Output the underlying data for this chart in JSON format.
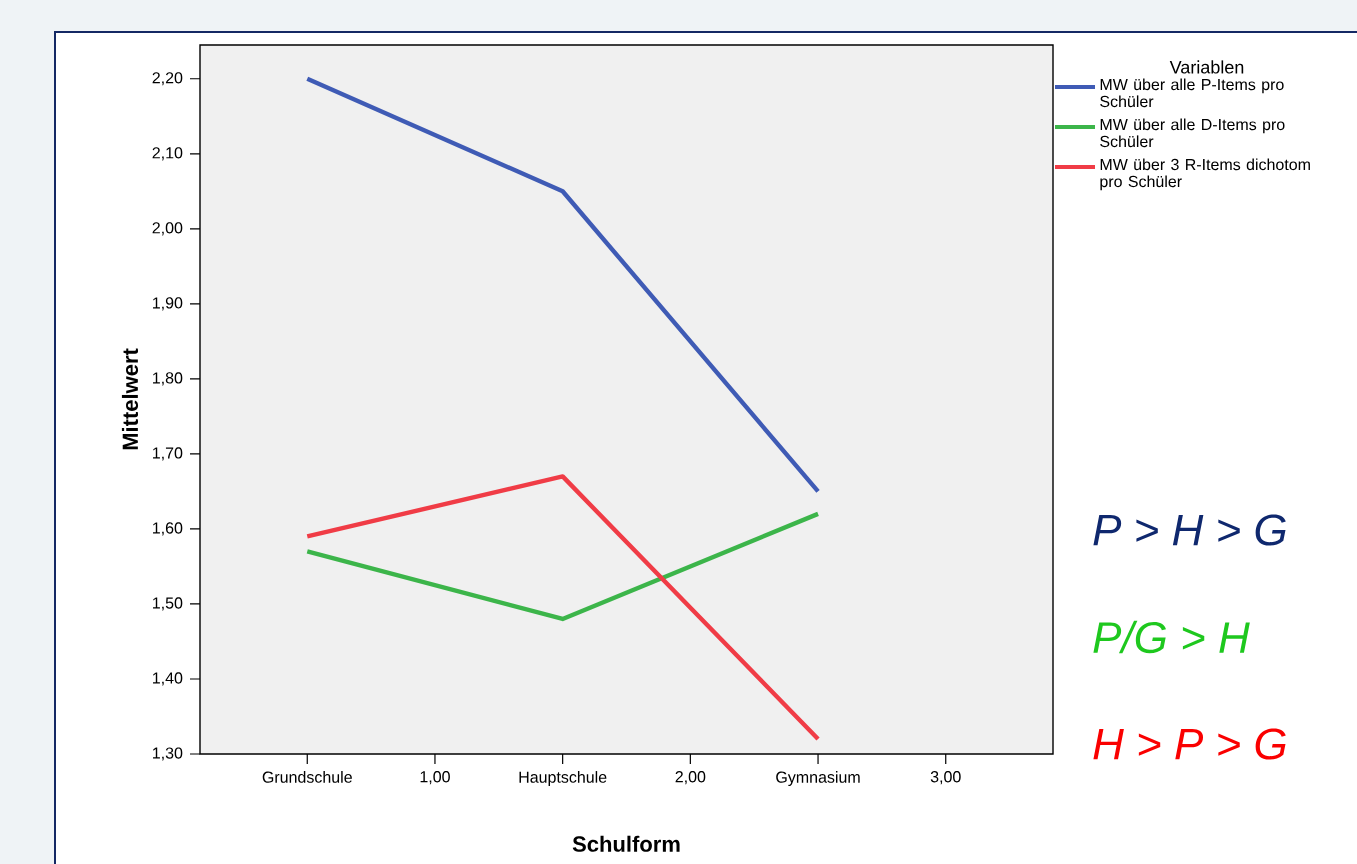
{
  "chart_data": {
    "type": "line",
    "xlabel": "Schulform",
    "ylabel": "Mittelwert",
    "legend_title": "Variablen",
    "legend": "top right",
    "x": [
      0.5,
      1.5,
      2.5
    ],
    "series": [
      {
        "name": "MW über alle P-Items pro Schüler",
        "color": "#3f5bb5",
        "values": [
          2.2,
          2.05,
          1.65
        ]
      },
      {
        "name": "MW über alle D-Items pro Schüler",
        "color": "#3cb54a",
        "values": [
          1.57,
          1.48,
          1.62
        ]
      },
      {
        "name": "MW über 3 R-Items dichotom pro Schüler",
        "color": "#f03c46",
        "values": [
          1.59,
          1.67,
          1.32
        ]
      }
    ],
    "xlim": [
      0.08,
      3.42
    ],
    "xticks": [
      {
        "value": 0.5,
        "label": "Grundschule"
      },
      {
        "value": 1,
        "label": "1,00"
      },
      {
        "value": 1.5,
        "label": "Hauptschule"
      },
      {
        "value": 2,
        "label": "2,00"
      },
      {
        "value": 2.5,
        "label": "Gymnasium"
      },
      {
        "value": 3,
        "label": "3,00"
      }
    ],
    "ylim": [
      1.3,
      2.245
    ],
    "yticks": [
      {
        "value": 1.3,
        "label": "1,30"
      },
      {
        "value": 1.4,
        "label": "1,40"
      },
      {
        "value": 1.5,
        "label": "1,50"
      },
      {
        "value": 1.6,
        "label": "1,60"
      },
      {
        "value": 1.7,
        "label": "1,70"
      },
      {
        "value": 1.8,
        "label": "1,80"
      },
      {
        "value": 1.9,
        "label": "1,90"
      },
      {
        "value": 2.0,
        "label": "2,00"
      },
      {
        "value": 2.1,
        "label": "2,10"
      },
      {
        "value": 2.2,
        "label": "2,20"
      }
    ],
    "annotations": [
      "P > H > G",
      "P/G > H",
      "H > P > G"
    ]
  }
}
